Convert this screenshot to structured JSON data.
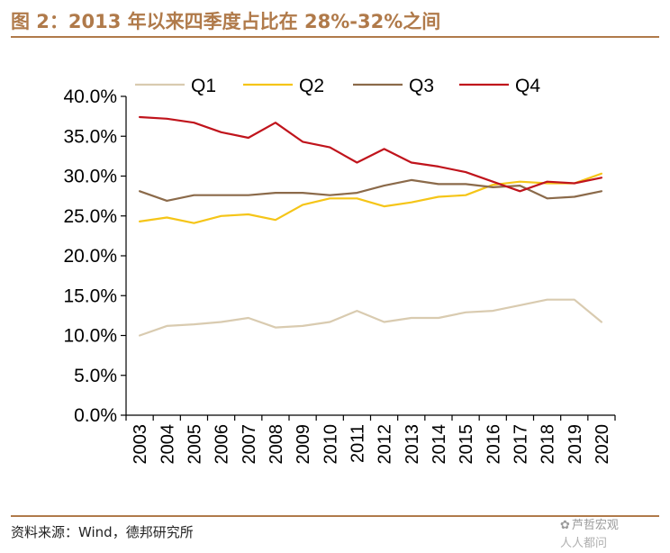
{
  "header": {
    "title": "图 2：2013 年以来四季度占比在 28%-32%之间"
  },
  "footer": {
    "source": "资料来源：Wind，德邦研究所",
    "watermark_line1": "芦哲宏观",
    "watermark_line2": "人人都问"
  },
  "colors": {
    "accent": "#b07a4a",
    "q1": "#d9cbb0",
    "q2": "#f5c518",
    "q3": "#8b6a4a",
    "q4": "#c0141c"
  },
  "chart_data": {
    "type": "line",
    "title": "",
    "xlabel": "",
    "ylabel": "",
    "categories": [
      "2003",
      "2004",
      "2005",
      "2006",
      "2007",
      "2008",
      "2009",
      "2010",
      "2011",
      "2012",
      "2013",
      "2014",
      "2015",
      "2016",
      "2017",
      "2018",
      "2019",
      "2020"
    ],
    "ylim": [
      0,
      40
    ],
    "yticks": [
      0,
      5,
      10,
      15,
      20,
      25,
      30,
      35,
      40
    ],
    "ytick_labels": [
      "0.0%",
      "5.0%",
      "10.0%",
      "15.0%",
      "20.0%",
      "25.0%",
      "30.0%",
      "35.0%",
      "40.0%"
    ],
    "legend_position": "top",
    "series": [
      {
        "name": "Q1",
        "color": "#d9cbb0",
        "values": [
          10.0,
          11.2,
          11.4,
          11.7,
          12.2,
          11.0,
          11.2,
          11.7,
          13.1,
          11.7,
          12.2,
          12.2,
          12.9,
          13.1,
          13.8,
          14.5,
          14.5,
          11.7
        ]
      },
      {
        "name": "Q2",
        "color": "#f5c518",
        "values": [
          24.3,
          24.8,
          24.1,
          25.0,
          25.2,
          24.5,
          26.4,
          27.2,
          27.2,
          26.2,
          26.7,
          27.4,
          27.6,
          28.9,
          29.3,
          29.1,
          29.1,
          30.3
        ]
      },
      {
        "name": "Q3",
        "color": "#8b6a4a",
        "values": [
          28.1,
          26.9,
          27.6,
          27.6,
          27.6,
          27.9,
          27.9,
          27.6,
          27.9,
          28.8,
          29.5,
          29.0,
          29.0,
          28.6,
          28.8,
          27.2,
          27.4,
          28.1
        ]
      },
      {
        "name": "Q4",
        "color": "#c0141c",
        "values": [
          37.4,
          37.2,
          36.7,
          35.5,
          34.8,
          36.7,
          34.3,
          33.6,
          31.7,
          33.4,
          31.7,
          31.2,
          30.5,
          29.3,
          28.1,
          29.3,
          29.1,
          29.8
        ]
      }
    ]
  }
}
